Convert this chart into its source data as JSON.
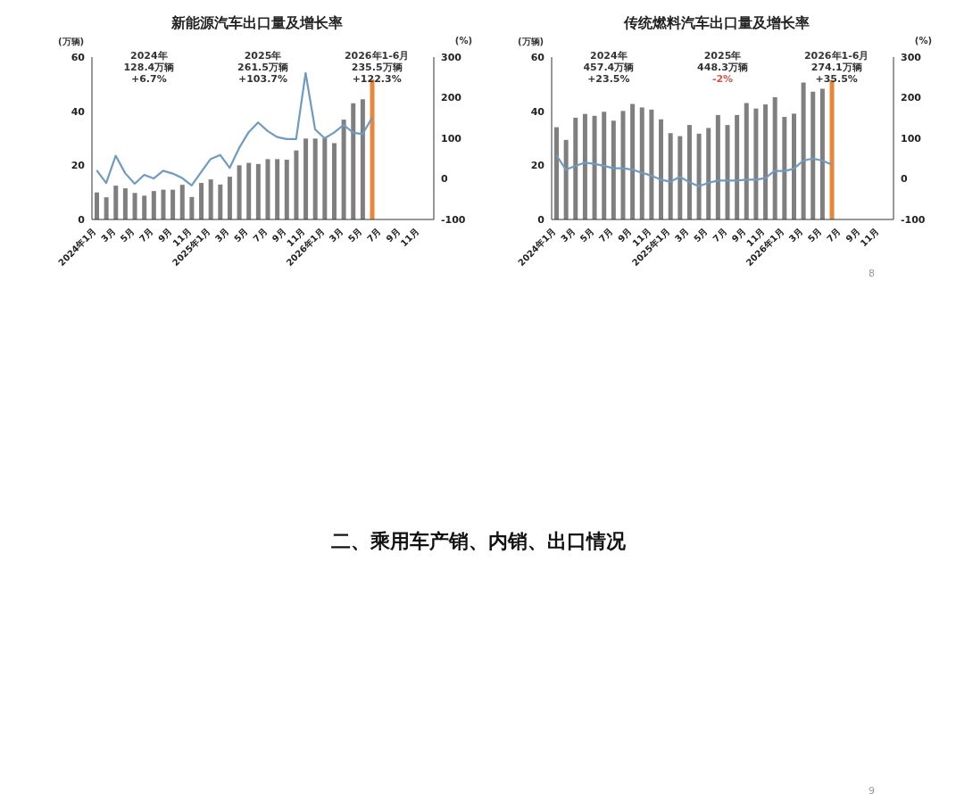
{
  "chart_data": [
    {
      "type": "bar",
      "title": "新能源汽车出口量及增长率",
      "ylabel": "(万辆)",
      "y2label": "(%)",
      "categories": [
        "2024年1月",
        null,
        "3月",
        null,
        "5月",
        null,
        "7月",
        null,
        "9月",
        null,
        "11月",
        null,
        "2025年1月",
        null,
        "3月",
        null,
        "5月",
        null,
        "7月",
        null,
        "9月",
        null,
        "11月",
        null,
        "2026年1月",
        null,
        "3月",
        null,
        "5月",
        null,
        "7月",
        null,
        "9月",
        null,
        "11月",
        null
      ],
      "series": [
        {
          "type": "bar",
          "colors": [
            "#7f7f7f",
            "#7f7f7f",
            "#7f7f7f",
            "#7f7f7f",
            "#7f7f7f",
            "#7f7f7f",
            "#7f7f7f",
            "#7f7f7f",
            "#7f7f7f",
            "#7f7f7f",
            "#7f7f7f",
            "#7f7f7f",
            "#7f7f7f",
            "#7f7f7f",
            "#7f7f7f",
            "#7f7f7f",
            "#7f7f7f",
            "#7f7f7f",
            "#7f7f7f",
            "#7f7f7f",
            "#7f7f7f",
            "#7f7f7f",
            "#7f7f7f",
            "#7f7f7f",
            "#7f7f7f",
            "#7f7f7f",
            "#7f7f7f",
            "#7f7f7f",
            "#7f7f7f",
            "#e8863a",
            "#7f7f7f",
            "#7f7f7f",
            "#7f7f7f",
            "#7f7f7f",
            "#7f7f7f",
            "#7f7f7f"
          ],
          "values": [
            10,
            8.2,
            12.5,
            11.5,
            9.8,
            8.8,
            10.5,
            11,
            11,
            12.8,
            8.3,
            13.5,
            14.8,
            12.9,
            15.8,
            20,
            20.9,
            20.5,
            22.3,
            22.3,
            22.1,
            25.5,
            29.9,
            29.9,
            30,
            28.2,
            36.9,
            42.9,
            44.4,
            51.7,
            null,
            null,
            null,
            null,
            null,
            null
          ]
        },
        {
          "type": "line",
          "axis": "y2",
          "color": "#6f9bc0",
          "values": [
            21,
            -10,
            57,
            14,
            -12,
            10,
            1,
            20,
            13,
            2,
            -16,
            17,
            49,
            59,
            27,
            76,
            115,
            139,
            118,
            103,
            98,
            98,
            261,
            122,
            100,
            114,
            133,
            114,
            110,
            151,
            null,
            null,
            null,
            null,
            null,
            null
          ]
        }
      ],
      "ylim": [
        0,
        60
      ],
      "yticks": [
        0,
        20,
        40,
        60
      ],
      "y2lim": [
        -100,
        300
      ],
      "y2ticks": [
        -100,
        0,
        100,
        200,
        300
      ],
      "annotations": [
        "2024年\n128.4万辆\n+6.7%",
        "2025年\n261.5万辆\n+103.7%",
        "2026年1-6月\n235.5万辆\n+122.3%"
      ]
    },
    {
      "type": "bar",
      "title": "传统燃料汽车出口量及增长率",
      "ylabel": "(万辆)",
      "y2label": "(%)",
      "categories": [
        "2024年1月",
        null,
        "3月",
        null,
        "5月",
        null,
        "7月",
        null,
        "9月",
        null,
        "11月",
        null,
        "2025年1月",
        null,
        "3月",
        null,
        "5月",
        null,
        "7月",
        null,
        "9月",
        null,
        "11月",
        null,
        "2026年1月",
        null,
        "3月",
        null,
        "5月",
        null,
        "7月",
        null,
        "9月",
        null,
        "11月",
        null
      ],
      "series": [
        {
          "type": "bar",
          "colors": [
            "#7f7f7f",
            "#7f7f7f",
            "#7f7f7f",
            "#7f7f7f",
            "#7f7f7f",
            "#7f7f7f",
            "#7f7f7f",
            "#7f7f7f",
            "#7f7f7f",
            "#7f7f7f",
            "#7f7f7f",
            "#7f7f7f",
            "#7f7f7f",
            "#7f7f7f",
            "#7f7f7f",
            "#7f7f7f",
            "#7f7f7f",
            "#7f7f7f",
            "#7f7f7f",
            "#7f7f7f",
            "#7f7f7f",
            "#7f7f7f",
            "#7f7f7f",
            "#7f7f7f",
            "#7f7f7f",
            "#7f7f7f",
            "#7f7f7f",
            "#7f7f7f",
            "#7f7f7f",
            "#e8863a",
            "#7f7f7f",
            "#7f7f7f",
            "#7f7f7f",
            "#7f7f7f",
            "#7f7f7f",
            "#7f7f7f"
          ],
          "values": [
            34.1,
            29.4,
            37.6,
            39,
            38.3,
            39.8,
            36.5,
            40.1,
            42.7,
            41.4,
            40.6,
            37,
            31.9,
            30.8,
            34.9,
            31.7,
            33.8,
            38.6,
            34.9,
            38.6,
            43,
            41,
            42.5,
            45.2,
            37.9,
            39.1,
            50.6,
            47.2,
            48.3,
            51.4,
            null,
            null,
            null,
            null,
            null,
            null
          ]
        },
        {
          "type": "line",
          "axis": "y2",
          "color": "#6f9bc0",
          "values": [
            58,
            23,
            32,
            40,
            37,
            32,
            26,
            26,
            23,
            15,
            8,
            -2,
            -7,
            5,
            -8,
            -18,
            -10,
            -4,
            -4,
            -4,
            -2,
            -2,
            2,
            20,
            19,
            25,
            45,
            50,
            45,
            35,
            null,
            null,
            null,
            null,
            null,
            null
          ]
        }
      ],
      "ylim": [
        0,
        60
      ],
      "yticks": [
        0,
        20,
        40,
        60
      ],
      "y2lim": [
        -100,
        300
      ],
      "y2ticks": [
        -100,
        0,
        100,
        200,
        300
      ],
      "annotations": [
        "2024年\n457.4万辆\n+23.5%",
        "2025年\n448.3万辆\n-2%",
        "2026年1-6月\n274.1万辆\n+35.5%"
      ]
    },
    {
      "type": "other",
      "title": "二、乘用车产销、内销、出口情况",
      "annotations": [
        "8",
        "9"
      ]
    }
  ]
}
